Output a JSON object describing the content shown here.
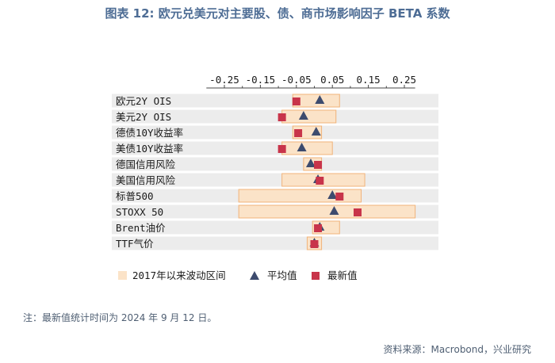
{
  "title": "图表 12: 欧元兑美元对主要股、债、商市场影响因子 BETA 系数",
  "note": "注：最新值统计时间为 2024 年 9 月 12 日。",
  "source": "资料来源：Macrobond，兴业研究",
  "colors": {
    "title": "#4e6d95",
    "range_fill": "#fbe3c8",
    "range_stroke": "#f0b37a",
    "mean_marker": "#3d4b6e",
    "latest_marker": "#c8344a",
    "row_band": "#ececec"
  },
  "chart_data": {
    "type": "range-dot",
    "title": "图表 12: 欧元兑美元对主要股、债、商市场影响因子 BETA 系数",
    "xlim": [
      -0.33,
      0.3
    ],
    "xticks": [
      -0.25,
      -0.15,
      -0.05,
      0.05,
      0.15,
      0.25
    ],
    "xtick_labels": [
      "-0.25",
      "-0.15",
      "-0.05",
      "0.05",
      "0.15",
      "0.25"
    ],
    "minor_xticks": [
      -0.2,
      -0.1,
      0.0,
      0.1,
      0.2
    ],
    "x_axis_position": "top",
    "grid": false,
    "legend_position": "bottom",
    "categories": [
      "欧元2Y OIS",
      "美元2Y OIS",
      "德债10Y收益率",
      "美债10Y收益率",
      "德国信用风险",
      "美国信用风险",
      "标普500",
      "STOXX 50",
      "Brent油价",
      "TTF气价"
    ],
    "series": [
      {
        "name": "2017年以来波动区间",
        "kind": "range",
        "low": [
          -0.06,
          -0.09,
          -0.06,
          -0.09,
          -0.03,
          -0.09,
          -0.21,
          -0.21,
          -0.005,
          -0.02
        ],
        "high": [
          0.07,
          0.06,
          0.02,
          0.05,
          0.02,
          0.14,
          0.13,
          0.28,
          0.07,
          0.02
        ]
      },
      {
        "name": "平均值",
        "kind": "marker",
        "marker": "triangle",
        "values": [
          0.015,
          -0.03,
          0.005,
          -0.035,
          -0.01,
          0.01,
          0.05,
          0.055,
          0.015,
          0.0
        ]
      },
      {
        "name": "最新值",
        "kind": "marker",
        "marker": "square",
        "values": [
          -0.05,
          -0.09,
          -0.045,
          -0.09,
          0.01,
          0.015,
          0.07,
          0.12,
          0.01,
          0.0
        ]
      }
    ]
  }
}
